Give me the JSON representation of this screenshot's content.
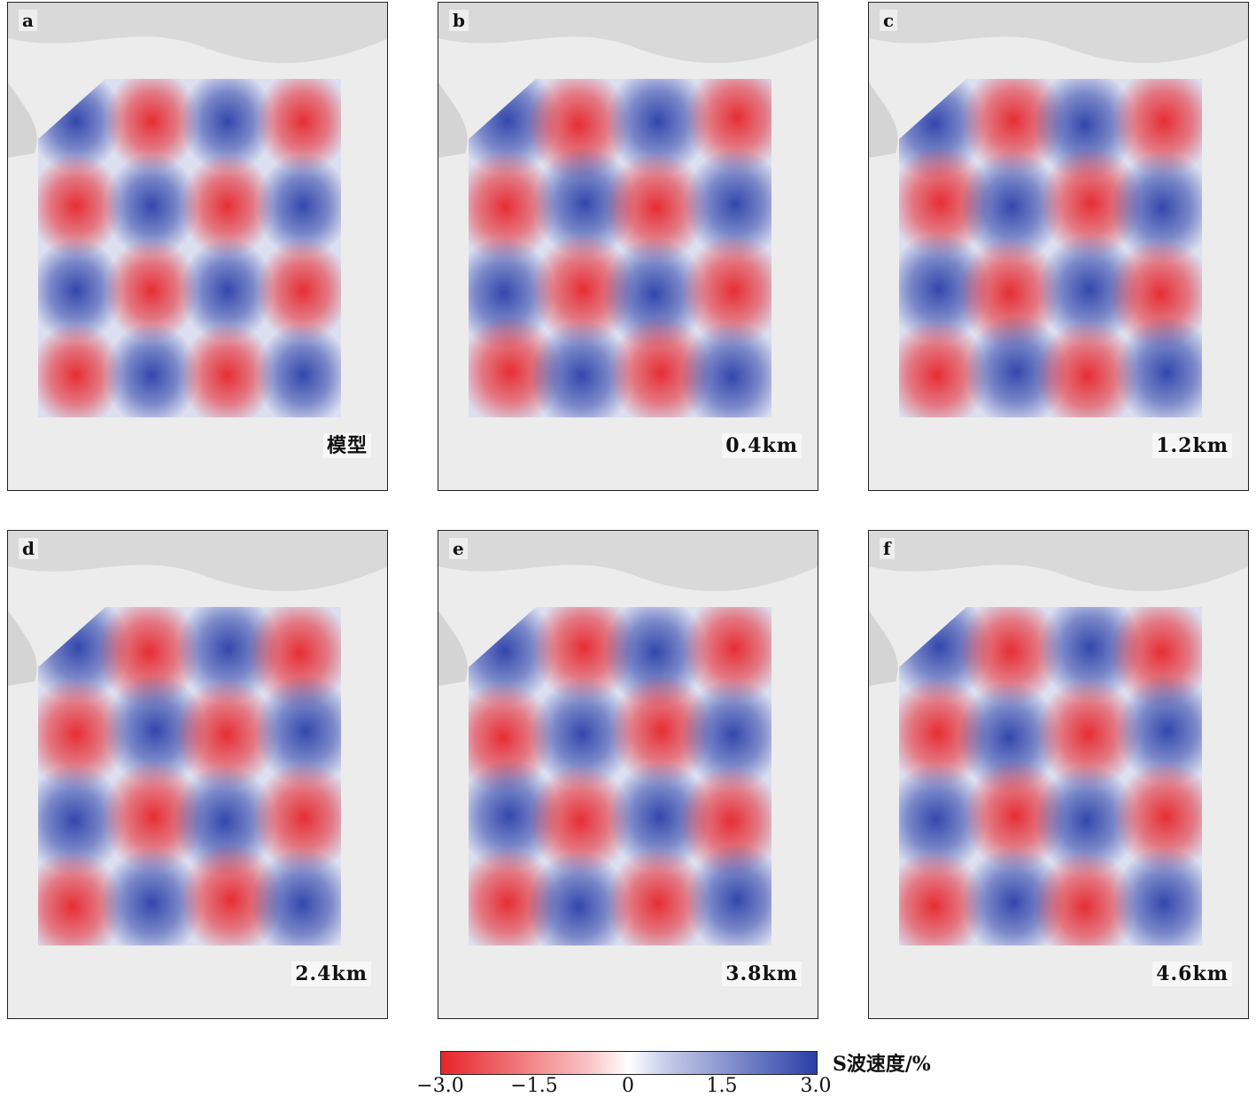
{
  "figure": {
    "panels": [
      {
        "letter": "a",
        "depth_label": "模型",
        "pattern": "model"
      },
      {
        "letter": "b",
        "depth_label": "0.4km",
        "pattern": "recovered"
      },
      {
        "letter": "c",
        "depth_label": "1.2km",
        "pattern": "recovered"
      },
      {
        "letter": "d",
        "depth_label": "2.4km",
        "pattern": "recovered"
      },
      {
        "letter": "e",
        "depth_label": "3.8km",
        "pattern": "recovered"
      },
      {
        "letter": "f",
        "depth_label": "4.6km",
        "pattern": "recovered"
      }
    ],
    "colorbar": {
      "title": "S波速度/%",
      "min": -3.0,
      "max": 3.0,
      "ticks": [
        "−3.0",
        "−1.5",
        "0",
        "1.5",
        "3.0"
      ],
      "colors": {
        "negative": "#e8242a",
        "zero": "#ffffff",
        "positive": "#2a3fa8"
      }
    }
  }
}
